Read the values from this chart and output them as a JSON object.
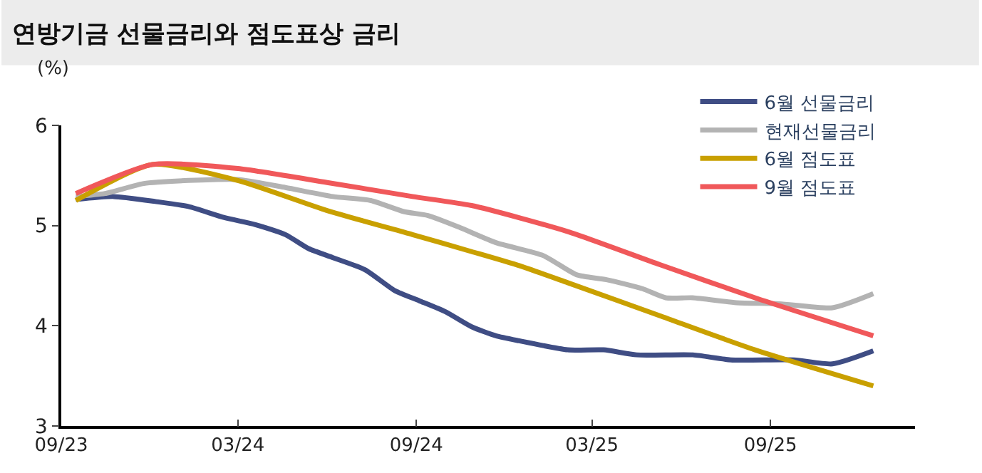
{
  "chart_data": {
    "type": "line",
    "title": "연방기금 선물금리와 점도표상 금리",
    "ylabel": "(%)",
    "xlim": [
      "2023-09-01",
      "2026-01-28"
    ],
    "xticks": [
      {
        "value": "2023-09-01",
        "label": "09/23"
      },
      {
        "value": "2024-03-01",
        "label": "03/24"
      },
      {
        "value": "2024-09-01",
        "label": "09/24"
      },
      {
        "value": "2025-03-01",
        "label": "03/25"
      },
      {
        "value": "2025-09-01",
        "label": "09/25"
      }
    ],
    "ylim": [
      3,
      6
    ],
    "yticks": [
      3,
      4,
      5,
      6
    ],
    "legend": "top right",
    "marker": "none",
    "line_style": "solid",
    "series": [
      {
        "name": "6월 선물금리",
        "color": "#3f4d84",
        "x": [
          "2023-09-16",
          "2023-10-25",
          "2023-12-07",
          "2024-01-10",
          "2024-02-16",
          "2024-03-19",
          "2024-04-19",
          "2024-05-13",
          "2024-06-07",
          "2024-07-10",
          "2024-08-10",
          "2024-09-04",
          "2024-10-01",
          "2024-10-28",
          "2024-11-22",
          "2024-12-16",
          "2025-02-04",
          "2025-03-13",
          "2025-04-16",
          "2025-06-13",
          "2025-07-22",
          "2025-09-25",
          "2025-11-04",
          "2025-12-16"
        ],
        "values": [
          5.26,
          5.29,
          5.24,
          5.19,
          5.08,
          5.01,
          4.91,
          4.77,
          4.68,
          4.56,
          4.35,
          4.25,
          4.14,
          3.99,
          3.9,
          3.85,
          3.76,
          3.76,
          3.71,
          3.71,
          3.66,
          3.66,
          3.62,
          3.75
        ]
      },
      {
        "name": "현재선물금리",
        "color": "#b3b3b3",
        "x": [
          "2023-09-16",
          "2023-10-16",
          "2023-11-25",
          "2024-01-10",
          "2024-03-01",
          "2024-04-19",
          "2024-06-07",
          "2024-07-16",
          "2024-08-19",
          "2024-09-13",
          "2024-10-16",
          "2024-11-22",
          "2025-01-10",
          "2025-02-13",
          "2025-03-16",
          "2025-04-22",
          "2025-05-16",
          "2025-06-13",
          "2025-07-28",
          "2025-09-10",
          "2025-11-04",
          "2025-12-16"
        ],
        "values": [
          5.29,
          5.32,
          5.42,
          5.45,
          5.46,
          5.38,
          5.29,
          5.25,
          5.14,
          5.1,
          4.98,
          4.83,
          4.7,
          4.51,
          4.46,
          4.37,
          4.28,
          4.28,
          4.23,
          4.22,
          4.18,
          4.32
        ]
      },
      {
        "name": "6월 점도표",
        "color": "#c9a000",
        "x": [
          "2023-09-16",
          "2023-12-04",
          "2024-03-01",
          "2024-06-01",
          "2024-08-28",
          "2024-10-28",
          "2024-12-16",
          "2025-02-04",
          "2025-05-10",
          "2025-08-16",
          "2025-12-16"
        ],
        "values": [
          5.25,
          5.61,
          5.45,
          5.15,
          4.91,
          4.74,
          4.6,
          4.43,
          4.1,
          3.76,
          3.4
        ]
      },
      {
        "name": "9월 점도표",
        "color": "#f0585a",
        "x": [
          "2023-09-16",
          "2023-12-04",
          "2024-03-01",
          "2024-06-01",
          "2024-08-28",
          "2024-10-28",
          "2025-02-04",
          "2025-05-10",
          "2025-08-16",
          "2025-12-16"
        ],
        "values": [
          5.32,
          5.61,
          5.57,
          5.43,
          5.29,
          5.2,
          4.94,
          4.61,
          4.28,
          3.9
        ]
      }
    ]
  }
}
